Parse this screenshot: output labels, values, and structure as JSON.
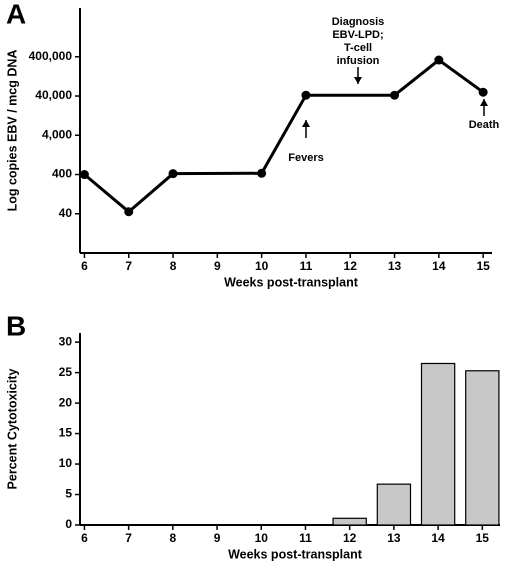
{
  "chart_data": [
    {
      "type": "line",
      "panel_label": "A",
      "x_label": "Weeks post-transplant",
      "y_label": "Log copies EBV / mcg DNA",
      "x": [
        6,
        7,
        8,
        10,
        11,
        13,
        14,
        15
      ],
      "values": [
        400,
        45,
        420,
        430,
        42000,
        42000,
        330000,
        50000
      ],
      "color": "#000000",
      "log_y": true,
      "xlim": [
        5.9,
        15.2
      ],
      "xticks": [
        6,
        7,
        8,
        9,
        10,
        11,
        12,
        13,
        14,
        15
      ],
      "ylim": [
        4,
        7000000
      ],
      "yticks": [
        40,
        400,
        {
          "value": 4000,
          "label": "4,000"
        },
        {
          "value": 40000,
          "label": "40,000"
        },
        {
          "value": 400000,
          "label": "400,000"
        }
      ],
      "annotations": [
        [
          "Diagnosis",
          "EBV-LPD;",
          "T-cell",
          "infusion"
        ],
        [
          "Fevers"
        ],
        [
          "Death"
        ]
      ]
    },
    {
      "type": "bar",
      "panel_label": "B",
      "x_label": "Weeks post-transplant",
      "y_label": "Percent Cytotoxicity",
      "x": [
        12,
        13,
        14,
        15
      ],
      "values": [
        1.1,
        6.7,
        26.5,
        25.3
      ],
      "color": "#c8c8c8",
      "xlim": [
        5.9,
        15.4
      ],
      "xticks": [
        6,
        7,
        8,
        9,
        10,
        11,
        12,
        13,
        14,
        15
      ],
      "ylim": [
        0,
        31.5
      ],
      "yticks": [
        0,
        5,
        10,
        15,
        20,
        25,
        30
      ]
    }
  ]
}
